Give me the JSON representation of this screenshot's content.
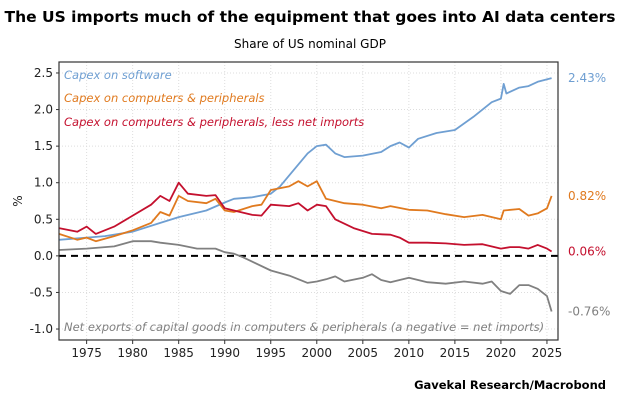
{
  "chart_data": {
    "type": "line",
    "title": "The US imports much of the equipment that goes into AI data centers",
    "subtitle": "Share of US nominal GDP",
    "ylabel": "%",
    "xlabel": "",
    "xlim": [
      1972,
      2026.2
    ],
    "ylim": [
      -1.15,
      2.65
    ],
    "xticks": [
      1975,
      1980,
      1985,
      1990,
      1995,
      2000,
      2005,
      2010,
      2015,
      2020,
      2025
    ],
    "yticks": [
      2.5,
      2.0,
      1.5,
      1.0,
      0.5,
      0.0,
      -0.5,
      -1.0
    ],
    "ytick_labels": [
      "2.5",
      "2.0",
      "1.5",
      "1.0",
      "0.5",
      "0.0",
      "-0.5",
      "-1.0"
    ],
    "grid": true,
    "zero_line": "dashed",
    "source": "Gavekal Research/Macrobond",
    "series": [
      {
        "name": "Capex on software",
        "color": "#6f9fd2",
        "end_label": "2.43%",
        "x": [
          1972,
          1975,
          1977,
          1980,
          1983,
          1985,
          1988,
          1990,
          1991,
          1993,
          1995,
          1996,
          1997,
          1999,
          2000,
          2001,
          2002,
          2003,
          2005,
          2007,
          2008,
          2009,
          2010,
          2011,
          2013,
          2015,
          2017,
          2019,
          2020,
          2020.3,
          2020.6,
          2022,
          2023,
          2024,
          2025.5
        ],
        "y": [
          0.22,
          0.25,
          0.27,
          0.33,
          0.45,
          0.53,
          0.62,
          0.73,
          0.78,
          0.8,
          0.85,
          0.95,
          1.1,
          1.4,
          1.5,
          1.52,
          1.4,
          1.35,
          1.37,
          1.42,
          1.5,
          1.55,
          1.48,
          1.6,
          1.68,
          1.72,
          1.9,
          2.1,
          2.15,
          2.35,
          2.22,
          2.3,
          2.32,
          2.38,
          2.43
        ]
      },
      {
        "name": "Capex on computers & peripherals",
        "color": "#e07a1f",
        "end_label": "0.82%",
        "x": [
          1972,
          1974,
          1975,
          1976,
          1978,
          1980,
          1982,
          1983,
          1984,
          1985,
          1986,
          1988,
          1989,
          1990,
          1991,
          1993,
          1994,
          1995,
          1997,
          1998,
          1999,
          2000,
          2001,
          2003,
          2005,
          2007,
          2008,
          2010,
          2012,
          2014,
          2016,
          2018,
          2020,
          2020.3,
          2022,
          2023,
          2024,
          2025,
          2025.5
        ],
        "y": [
          0.3,
          0.22,
          0.25,
          0.2,
          0.27,
          0.35,
          0.45,
          0.6,
          0.55,
          0.82,
          0.75,
          0.72,
          0.78,
          0.62,
          0.6,
          0.68,
          0.7,
          0.9,
          0.95,
          1.02,
          0.95,
          1.02,
          0.78,
          0.72,
          0.7,
          0.65,
          0.68,
          0.63,
          0.62,
          0.57,
          0.53,
          0.56,
          0.5,
          0.62,
          0.64,
          0.55,
          0.58,
          0.65,
          0.82
        ]
      },
      {
        "name": "Capex on computers & peripherals, less net imports",
        "color": "#c4102e",
        "end_label": "0.06%",
        "x": [
          1972,
          1974,
          1975,
          1976,
          1978,
          1980,
          1982,
          1983,
          1984,
          1985,
          1986,
          1988,
          1989,
          1990,
          1991,
          1993,
          1994,
          1995,
          1997,
          1998,
          1999,
          2000,
          2001,
          2002,
          2004,
          2006,
          2008,
          2009,
          2010,
          2012,
          2014,
          2016,
          2018,
          2020,
          2021,
          2022,
          2023,
          2024,
          2025,
          2025.5
        ],
        "y": [
          0.38,
          0.33,
          0.4,
          0.3,
          0.4,
          0.55,
          0.7,
          0.82,
          0.75,
          1.0,
          0.85,
          0.82,
          0.83,
          0.65,
          0.62,
          0.56,
          0.55,
          0.7,
          0.68,
          0.72,
          0.62,
          0.7,
          0.68,
          0.5,
          0.38,
          0.3,
          0.29,
          0.25,
          0.18,
          0.18,
          0.17,
          0.15,
          0.16,
          0.1,
          0.12,
          0.12,
          0.1,
          0.15,
          0.1,
          0.06
        ]
      },
      {
        "name": "Net exports of capital goods in computers & peripherals (a negative = net imports)",
        "color": "#808080",
        "end_label": "-0.76%",
        "x": [
          1972,
          1975,
          1978,
          1980,
          1982,
          1983,
          1985,
          1987,
          1989,
          1990,
          1991,
          1992,
          1993,
          1995,
          1997,
          1999,
          2000,
          2001,
          2002,
          2003,
          2005,
          2006,
          2007,
          2008,
          2010,
          2012,
          2014,
          2016,
          2018,
          2019,
          2020,
          2021,
          2022,
          2023,
          2024,
          2025,
          2025.5
        ],
        "y": [
          0.08,
          0.1,
          0.13,
          0.2,
          0.2,
          0.18,
          0.15,
          0.1,
          0.1,
          0.05,
          0.03,
          -0.02,
          -0.08,
          -0.2,
          -0.27,
          -0.37,
          -0.35,
          -0.32,
          -0.28,
          -0.35,
          -0.3,
          -0.25,
          -0.33,
          -0.36,
          -0.3,
          -0.36,
          -0.38,
          -0.35,
          -0.38,
          -0.35,
          -0.48,
          -0.52,
          -0.4,
          -0.4,
          -0.45,
          -0.55,
          -0.76
        ]
      }
    ]
  }
}
